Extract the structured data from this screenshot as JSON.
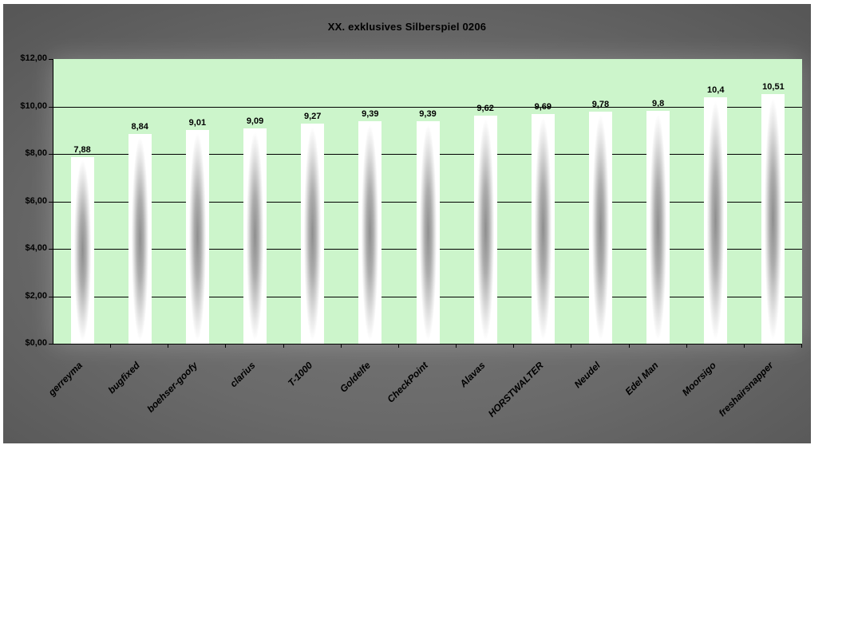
{
  "chart_data": {
    "type": "bar",
    "title": "XX. exklusives Silberspiel 0206",
    "categories": [
      "gerreyma",
      "bugfixed",
      "boehser-goofy",
      "clarius",
      "T-1000",
      "Goldelfe",
      "CheckPoint",
      "Alavas",
      "HORSTWALTER",
      "Neudel",
      "Edel Man",
      "Moorsigo",
      "freshairsnapper"
    ],
    "values": [
      7.88,
      8.84,
      9.01,
      9.09,
      9.27,
      9.39,
      9.39,
      9.62,
      9.69,
      9.78,
      9.8,
      10.4,
      10.51
    ],
    "value_labels": [
      "7,88",
      "8,84",
      "9,01",
      "9,09",
      "9,27",
      "9,39",
      "9,39",
      "9,62",
      "9,69",
      "9,78",
      "9,8",
      "10,4",
      "10,51"
    ],
    "y_tick_labels": [
      "$12,00",
      "$10,00",
      "$8,00",
      "$6,00",
      "$4,00",
      "$2,00",
      "$0,00"
    ],
    "xlabel": "",
    "ylabel": "",
    "ylim": [
      0,
      12
    ],
    "y_step": 2,
    "grid": true,
    "legend": "none",
    "category_label_rotation_deg": -45,
    "colors": {
      "plot_bg": "#ccf5cb",
      "chart_bg_center": "#787878",
      "chart_bg_edge": "#575757",
      "bar_edge": "#ffffff",
      "bar_center": "#8e8e8e",
      "gridline": "#000000",
      "text": "#000000",
      "page_bg": "#ffffff"
    }
  }
}
